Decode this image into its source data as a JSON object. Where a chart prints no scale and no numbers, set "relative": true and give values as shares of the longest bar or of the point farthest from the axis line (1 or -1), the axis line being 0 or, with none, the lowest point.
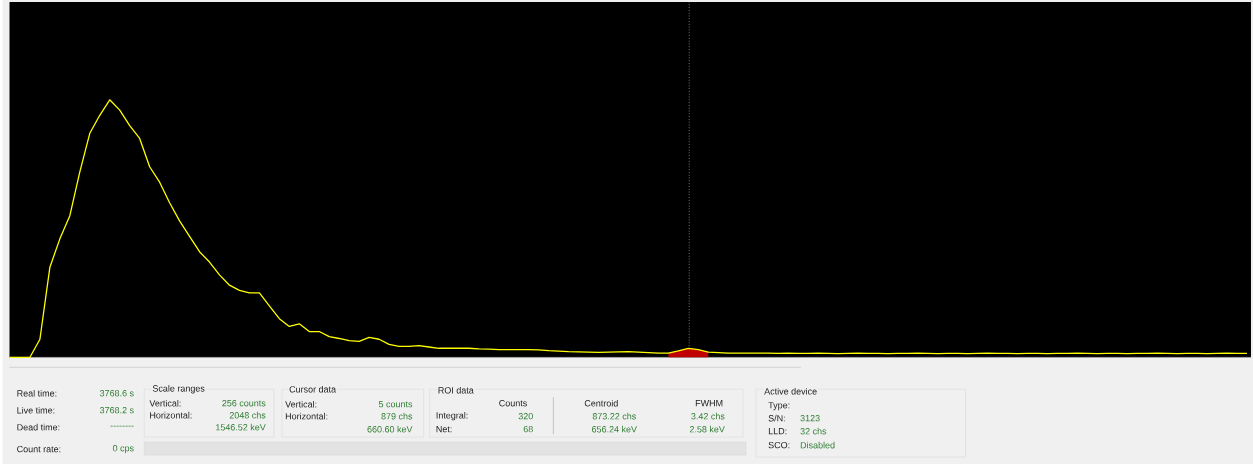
{
  "chart_data": {
    "type": "line",
    "relative": true,
    "categories": [
      null,
      null,
      null,
      null,
      null,
      null,
      null,
      null,
      null,
      null,
      null,
      null,
      null,
      null,
      null,
      null,
      null,
      null,
      null,
      null,
      null,
      null,
      null,
      null,
      null,
      null,
      null,
      null,
      null,
      null,
      null,
      null,
      null,
      null,
      null,
      null,
      null,
      null,
      null,
      null,
      null,
      null,
      null,
      null,
      null,
      null,
      null,
      null,
      null,
      null,
      null,
      null,
      null,
      null,
      null,
      null,
      null,
      null,
      null,
      null,
      null,
      null,
      null,
      null,
      null,
      null,
      null,
      null,
      null,
      null,
      null,
      null,
      null,
      null,
      null,
      null,
      null,
      null,
      null,
      null,
      null,
      null,
      null,
      null,
      null,
      null,
      null,
      null,
      null,
      null,
      null,
      null,
      null,
      null,
      null,
      null,
      null,
      null,
      null,
      null,
      null,
      null,
      null,
      null,
      null,
      null,
      null,
      null,
      null,
      null,
      null,
      null,
      null,
      null,
      null,
      null,
      null,
      null,
      null,
      null,
      null,
      null,
      null,
      null,
      null
    ],
    "series": [
      {
        "color": "#ffff00",
        "values": [
          0,
          0,
          0,
          0.07,
          0.35,
          0.46,
          0.55,
          0.72,
          0.87,
          0.94,
          1,
          0.96,
          0.9,
          0.85,
          0.74,
          0.68,
          0.6,
          0.53,
          0.47,
          0.41,
          0.37,
          0.32,
          0.28,
          0.26,
          0.25,
          0.25,
          0.2,
          0.15,
          0.12,
          0.13,
          0.1,
          0.1,
          0.08,
          0.073,
          0.065,
          0.062,
          0.077,
          0.07,
          0.05,
          0.042,
          0.042,
          0.045,
          0.04,
          0.035,
          0.035,
          0.035,
          0.035,
          0.033,
          0.032,
          0.03,
          0.03,
          0.03,
          0.03,
          0.029,
          0.026,
          0.024,
          0.022,
          0.021,
          0.02,
          0.019,
          0.02,
          0.021,
          0.022,
          0.02,
          0.018,
          0.016,
          0.016,
          0.025,
          0.035,
          0.03,
          0.02,
          0.018,
          0.016,
          0.016,
          0.016,
          0.016,
          0.016,
          0.015,
          0.016,
          0.015,
          0.015,
          0.016,
          0.015,
          0.014,
          0.015,
          0.016,
          0.015,
          0.015,
          0.014,
          0.015,
          0.015,
          0.016,
          0.015,
          0.014,
          0.015,
          0.015,
          0.014,
          0.015,
          0.016,
          0.015,
          0.015,
          0.014,
          0.015,
          0.015,
          0.014,
          0.015,
          0.015,
          0.016,
          0.015,
          0.014,
          0.015,
          0.015,
          0.014,
          0.015,
          0.015,
          0.016,
          0.015,
          0.014,
          0.015,
          0.015,
          0.014,
          0.015,
          0.016,
          0.015,
          0.015
        ]
      },
      {
        "type": "area",
        "color": "#c00000",
        "values": [
          null,
          null,
          null,
          null,
          null,
          null,
          null,
          null,
          null,
          null,
          null,
          null,
          null,
          null,
          null,
          null,
          null,
          null,
          null,
          null,
          null,
          null,
          null,
          null,
          null,
          null,
          null,
          null,
          null,
          null,
          null,
          null,
          null,
          null,
          null,
          null,
          null,
          null,
          null,
          null,
          null,
          null,
          null,
          null,
          null,
          null,
          null,
          null,
          null,
          null,
          null,
          null,
          null,
          null,
          null,
          null,
          null,
          null,
          null,
          null,
          null,
          null,
          null,
          null,
          null,
          null,
          0.016,
          0.025,
          0.035,
          0.03,
          0.02,
          null,
          null,
          null,
          null,
          null,
          null,
          null,
          null,
          null,
          null,
          null,
          null,
          null,
          null,
          null,
          null,
          null,
          null,
          null,
          null,
          null,
          null,
          null,
          null,
          null,
          null,
          null,
          null,
          null,
          null,
          null,
          null,
          null,
          null,
          null,
          null,
          null,
          null,
          null,
          null,
          null,
          null,
          null,
          null,
          null,
          null,
          null,
          null,
          null,
          null,
          null,
          null,
          null,
          null
        ]
      }
    ],
    "annotations": [
      "Real time:",
      "3768.6 s",
      "Live time:",
      "3768.2 s",
      "Dead time:",
      "--------",
      "Count rate:",
      "0 cps",
      "Scale ranges",
      "Vertical:",
      "256 counts",
      "Horizontal:",
      "2048 chs",
      "1546.52 keV",
      "Cursor data",
      "Vertical:",
      "5 counts",
      "Horizontal:",
      "879 chs",
      "660.60 keV",
      "ROI data",
      "Counts",
      "Centroid",
      "FWHM",
      "Integral:",
      "320",
      "Net:",
      "68",
      "873.22 chs",
      "656.24 keV",
      "3.42 chs",
      "2.58 keV",
      "Active device",
      "Type:",
      "S/N:",
      "3123",
      "LLD:",
      "32 chs",
      "SCO:",
      "Disabled"
    ]
  }
}
